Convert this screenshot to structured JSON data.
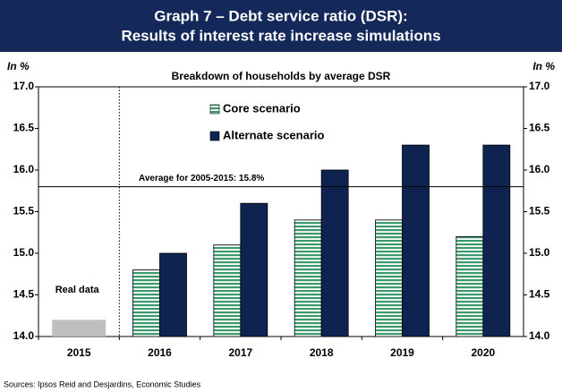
{
  "chart_data": {
    "type": "bar",
    "title": "Graph 7 – Debt service ratio (DSR):",
    "subtitle": "Results of interest rate increase simulations",
    "plot_title": "Breakdown of households by average DSR",
    "y_label": "In %",
    "y2_label": "In %",
    "categories": [
      "2015",
      "2016",
      "2017",
      "2018",
      "2019",
      "2020"
    ],
    "series": [
      {
        "name": "Core scenario",
        "color": "#3b9a6b",
        "pattern": "horizontal-stripes",
        "values": [
          null,
          14.8,
          15.1,
          15.4,
          15.4,
          15.2
        ]
      },
      {
        "name": "Alternate scenario",
        "color": "#0e2350",
        "values": [
          null,
          15.0,
          15.6,
          16.0,
          16.3,
          16.3
        ]
      }
    ],
    "real_data": {
      "label": "Real data",
      "color": "#bfbfbf",
      "values": [
        14.2,
        null,
        null,
        null,
        null,
        null
      ]
    },
    "reference_line": {
      "value": 15.8,
      "label": "Average for 2005-2015: 15.8%"
    },
    "ylim": [
      14,
      17
    ],
    "yticks": [
      {
        "value": 14,
        "label": "14.0"
      },
      14.5,
      {
        "value": 15,
        "label": "15.0"
      },
      15.5,
      {
        "value": 16,
        "label": "16.0"
      },
      16.5,
      {
        "value": 17,
        "label": "17.0"
      }
    ],
    "y2lim": [
      14,
      17
    ],
    "y2ticks": [
      {
        "value": 14,
        "label": "14.0"
      },
      14.5,
      {
        "value": 15,
        "label": "15.0"
      },
      15.5,
      {
        "value": 16,
        "label": "16.0"
      },
      16.5,
      {
        "value": 17,
        "label": "17.0"
      }
    ],
    "grid": false,
    "legend": "upper-left",
    "source": "Sources: Ipsos Reid and Desjardins, Economic Studies"
  }
}
